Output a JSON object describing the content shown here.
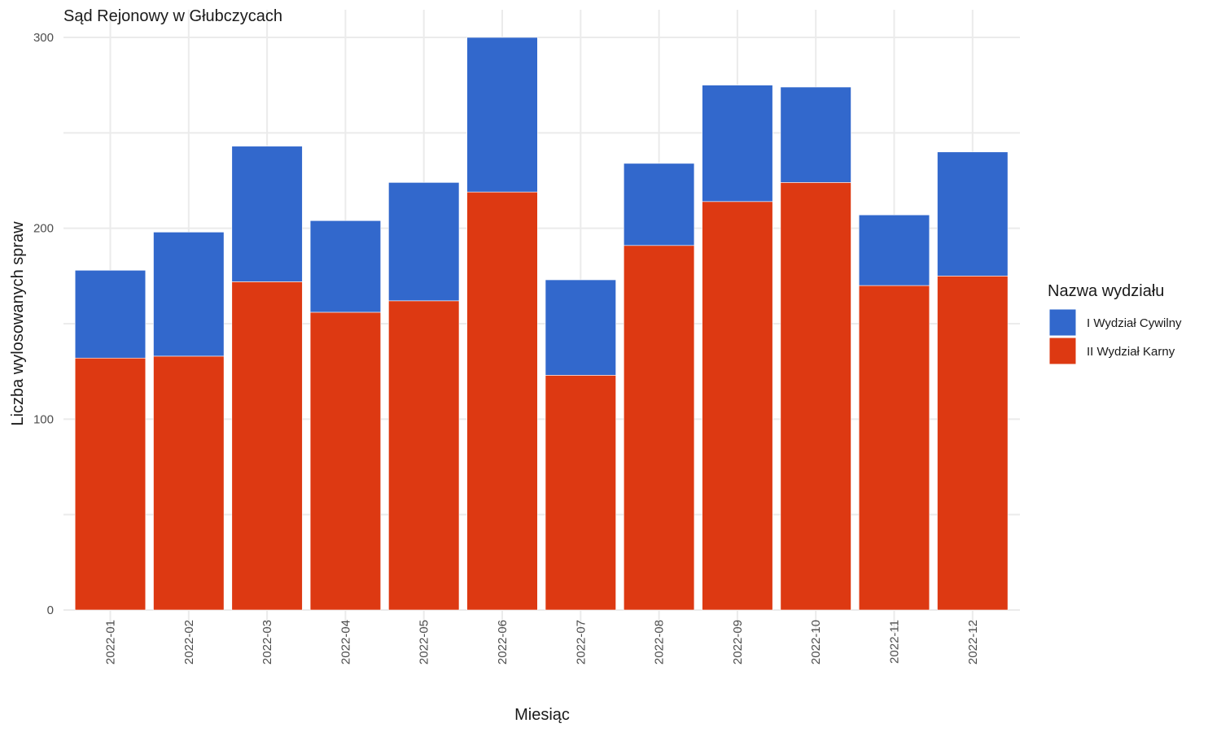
{
  "chart_data": {
    "type": "bar",
    "stacked": true,
    "title": "Sąd Rejonowy w Głubczycach",
    "xlabel": "Miesiąc",
    "ylabel": "Liczba wylosowanych spraw",
    "ylim": [
      0,
      300
    ],
    "yticks": [
      0,
      100,
      200,
      300
    ],
    "categories": [
      "2022-01",
      "2022-02",
      "2022-03",
      "2022-04",
      "2022-05",
      "2022-06",
      "2022-07",
      "2022-08",
      "2022-09",
      "2022-10",
      "2022-11",
      "2022-12"
    ],
    "series": [
      {
        "name": "II Wydział Karny",
        "color": "#dd3912",
        "values": [
          132,
          133,
          172,
          156,
          162,
          219,
          123,
          191,
          214,
          224,
          170,
          175
        ]
      },
      {
        "name": "I Wydział Cywilny",
        "color": "#3268cc",
        "values": [
          46,
          65,
          71,
          48,
          62,
          81,
          50,
          43,
          61,
          50,
          37,
          65
        ]
      }
    ],
    "legend": {
      "title": "Nazwa wydziału",
      "position": "right",
      "items": [
        {
          "label": "I Wydział Cywilny",
          "color": "#3268cc"
        },
        {
          "label": "II Wydział Karny",
          "color": "#dd3912"
        }
      ]
    },
    "grid": true
  }
}
